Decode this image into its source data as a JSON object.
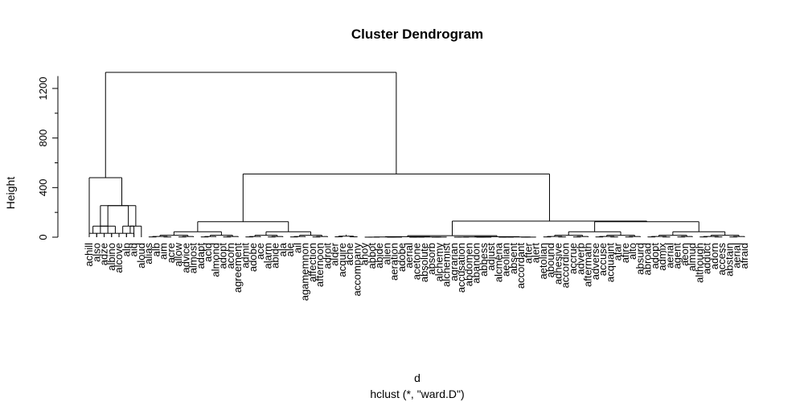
{
  "chart_data": {
    "type": "dendrogram",
    "title": "Cluster Dendrogram",
    "ylabel": "Height",
    "xlabel": "d",
    "sub": "hclust (*, \"ward.D\")",
    "ylim": [
      0,
      1300
    ],
    "yticks": [
      0,
      400,
      800,
      1200
    ],
    "grid": false,
    "leaves": [
      "achill",
      "also",
      "adze",
      "albino",
      "alcove",
      "alp",
      "aid",
      "aloud",
      "alias",
      "alb",
      "aim",
      "acre",
      "allow",
      "advice",
      "almost",
      "adapt",
      "acid",
      "almond",
      "adopt",
      "acorn",
      "agreement",
      "admit",
      "adobe",
      "ace",
      "alarm",
      "abide",
      "ala",
      "ale",
      "ail",
      "agamemnon",
      "affection",
      "afternoon",
      "adroit",
      "alder",
      "acquire",
      "ache",
      "accompany",
      "ahoy",
      "abbot",
      "abide",
      "alien",
      "aeration",
      "adobe",
      "aerial",
      "acetone",
      "absolute",
      "absorb",
      "alchemy",
      "alchemist",
      "agrarian",
      "accusation",
      "abdomen",
      "abandon",
      "abbess",
      "adjust",
      "alcmena",
      "aeolian",
      "absent",
      "accordant",
      "after",
      "alert",
      "aetolian",
      "abound",
      "adhesive",
      "accordion",
      "accrue",
      "adverb",
      "aftermath",
      "adverse",
      "accuse",
      "acquaint",
      "afar",
      "afire",
      "alto",
      "absurd",
      "abroad",
      "adopt",
      "admix",
      "aerial",
      "agent",
      "aeon",
      "almud",
      "although",
      "adduct",
      "adorn",
      "access",
      "abstain",
      "aerial",
      "afraid"
    ],
    "merges": [
      {
        "height": 1330
      },
      {
        "height": 510
      },
      {
        "height": 480
      },
      {
        "height": 255
      },
      {
        "height": 125
      },
      {
        "height": 125
      },
      {
        "height": 80
      },
      {
        "height": 70
      },
      {
        "height": 65
      },
      {
        "height": 45
      },
      {
        "height": 40
      },
      {
        "height": 35
      },
      {
        "height": 30
      },
      {
        "height": 30
      },
      {
        "height": 20
      },
      {
        "height": 15
      },
      {
        "height": 10
      },
      {
        "height": 5
      }
    ]
  }
}
